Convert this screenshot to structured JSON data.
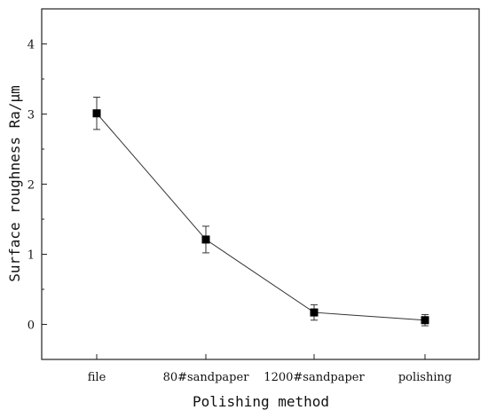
{
  "chart_data": {
    "type": "line",
    "title": "",
    "xlabel": "Polishing method",
    "ylabel": "Surface roughness Ra/μm",
    "categories": [
      "file",
      "80#sandpaper",
      "1200#sandpaper",
      "polishing"
    ],
    "ylim": [
      -0.5,
      4.5
    ],
    "yticks": [
      0,
      1,
      2,
      3,
      4
    ],
    "grid": false,
    "legend": "none",
    "series": [
      {
        "values": [
          3.01,
          1.21,
          0.17,
          0.06
        ],
        "error": [
          0.23,
          0.19,
          0.11,
          0.08
        ],
        "marker": "square",
        "color": "#000000"
      }
    ]
  }
}
